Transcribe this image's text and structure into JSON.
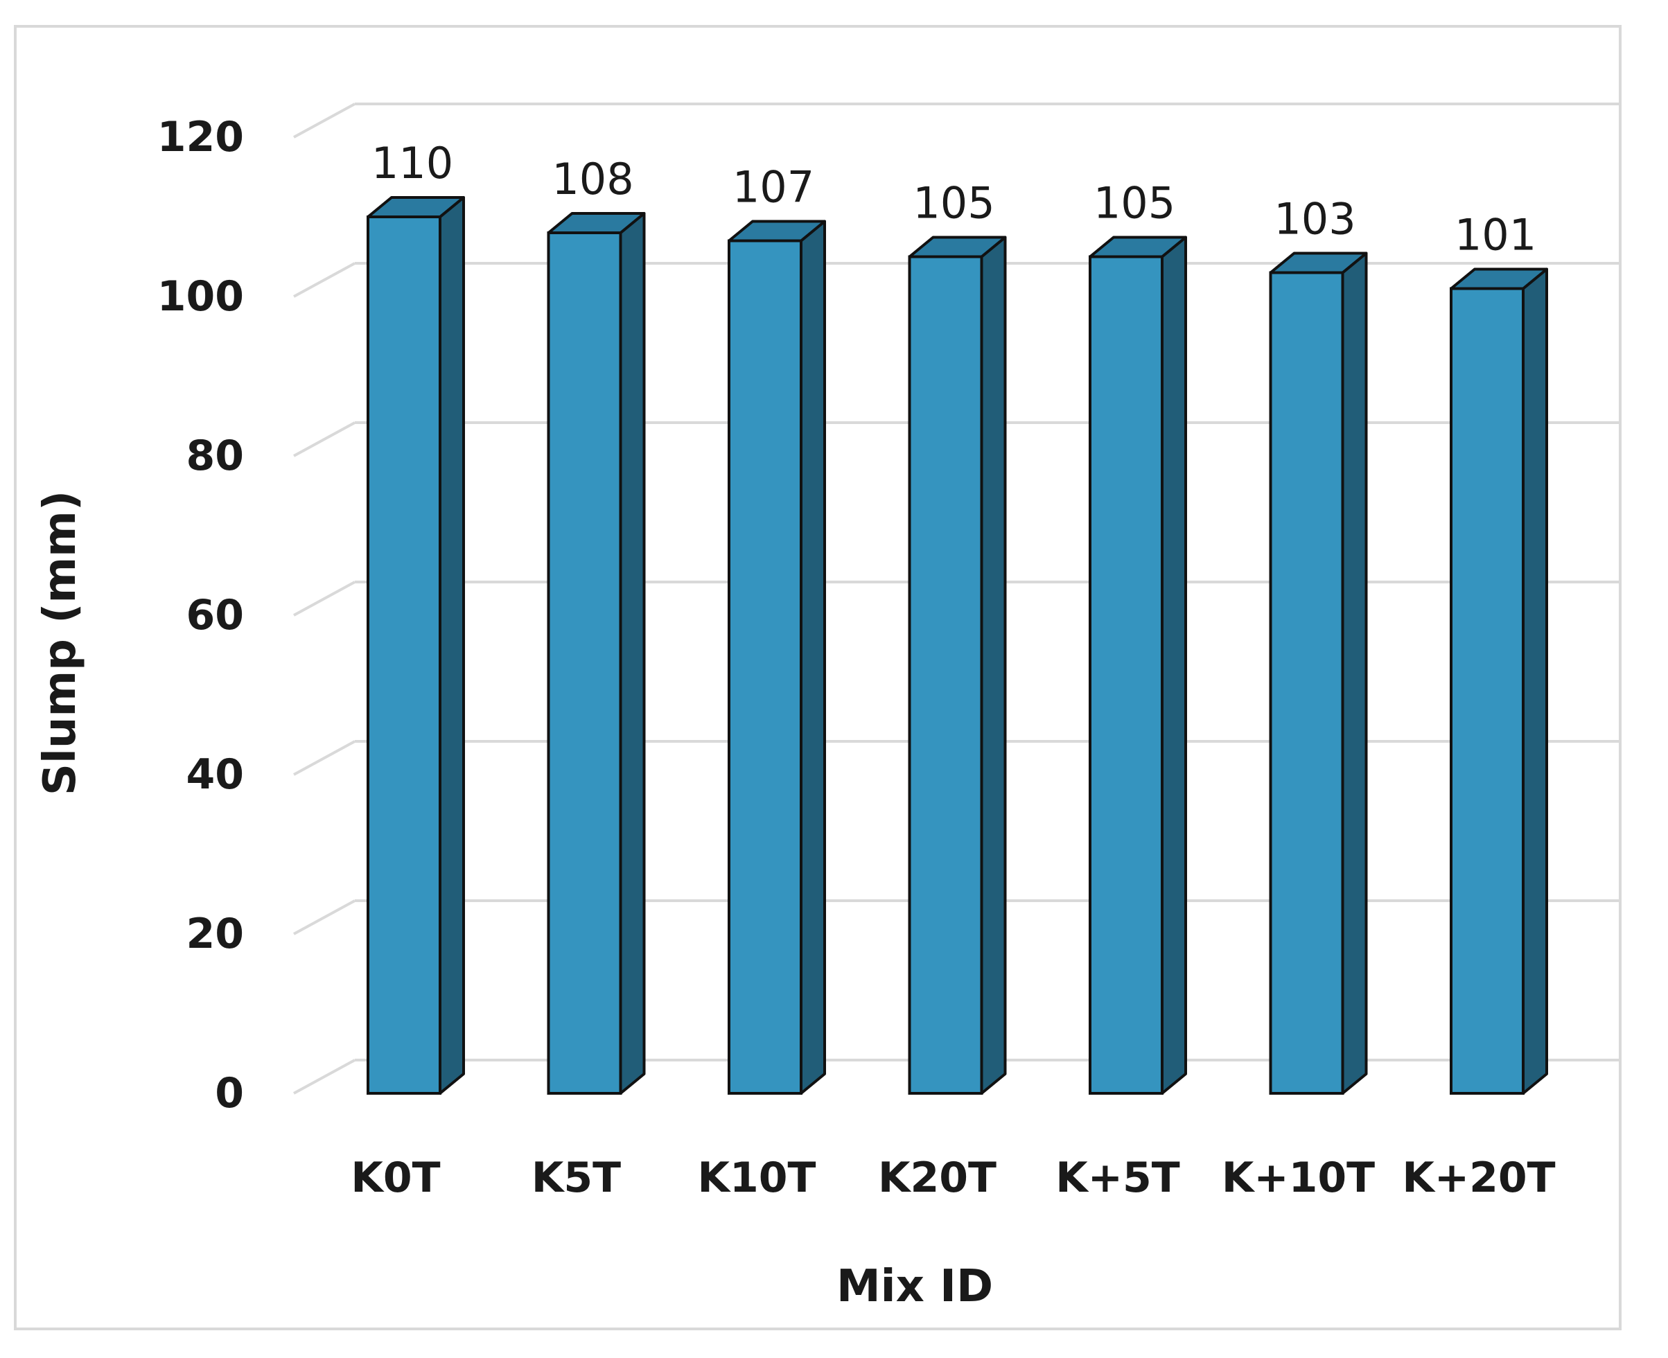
{
  "chart_data": {
    "type": "bar",
    "style": "3d-column",
    "categories": [
      "K0T",
      "K5T",
      "K10T",
      "K20T",
      "K+5T",
      "K+10T",
      "K+20T"
    ],
    "values": [
      110,
      108,
      107,
      105,
      105,
      103,
      101
    ],
    "data_labels": [
      "110",
      "108",
      "107",
      "105",
      "105",
      "103",
      "101"
    ],
    "ylim": [
      0,
      120
    ],
    "yticks": [
      "0",
      "20",
      "40",
      "60",
      "80",
      "100",
      "120"
    ],
    "ytick_values": [
      0,
      20,
      40,
      60,
      80,
      100,
      120
    ],
    "xlabel": "Mix ID",
    "ylabel": "Slump (mm)",
    "grid": true,
    "legend": "none",
    "colors": {
      "bar_front": "#3594bf",
      "bar_side": "#215d78",
      "bar_top": "#2a7aa0",
      "bar_outline": "#111111",
      "gridline": "#d9d9d9",
      "frame": "#d9d9d9"
    }
  }
}
